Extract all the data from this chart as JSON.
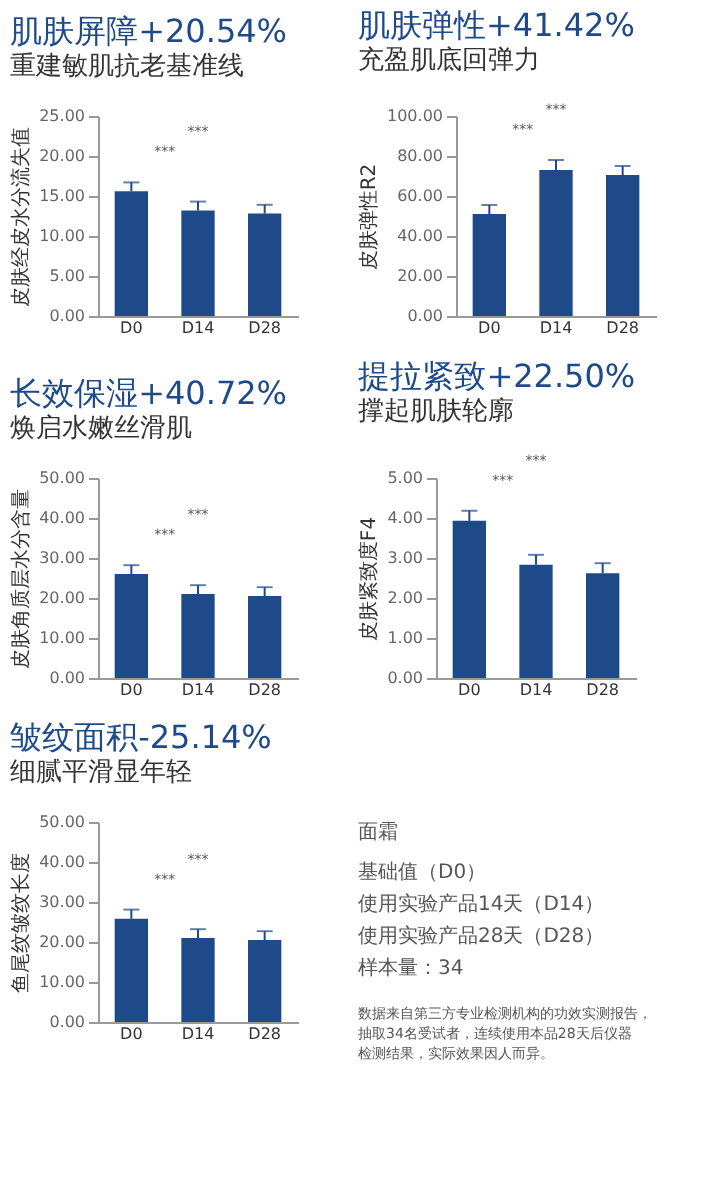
{
  "chart_data": [
    {
      "type": "bar",
      "title": "肌肤屏障+20.54%",
      "subtitle": "重建敏肌抗老基准线",
      "ylabel": "皮肤经皮水分流失值",
      "categories": [
        "D0",
        "D14",
        "D28"
      ],
      "values": [
        15.6,
        13.2,
        12.8
      ],
      "errors": [
        [
          15.6,
          16.7
        ],
        [
          13.2,
          14.3
        ],
        [
          12.8,
          13.9
        ]
      ],
      "color": "#1f4a8a",
      "ylim": [
        0,
        25
      ],
      "yticks": [
        {
          "value": 0,
          "label": "0.00"
        },
        {
          "value": 5,
          "label": "5.00"
        },
        {
          "value": 10,
          "label": "10.00"
        },
        {
          "value": 15,
          "label": "15.00"
        },
        {
          "value": 20,
          "label": "20.00"
        },
        {
          "value": 25,
          "label": "25.00"
        }
      ],
      "annotations": [
        "***",
        "***"
      ]
    },
    {
      "type": "bar",
      "title": "肌肤弹性+41.42%",
      "subtitle": "充盈肌底回弹力",
      "ylabel": "皮肤弹性R2",
      "categories": [
        "D0",
        "D14",
        "D28"
      ],
      "values": [
        51,
        73,
        70.5
      ],
      "errors": [
        [
          51,
          55.5
        ],
        [
          73,
          78
        ],
        [
          70.5,
          75
        ]
      ],
      "color": "#1f4a8a",
      "ylim": [
        0,
        100
      ],
      "yticks": [
        {
          "value": 0,
          "label": "0.00"
        },
        {
          "value": 20,
          "label": "20.00"
        },
        {
          "value": 40,
          "label": "40.00"
        },
        {
          "value": 60,
          "label": "60.00"
        },
        {
          "value": 80,
          "label": "80.00"
        },
        {
          "value": 100,
          "label": "100.00"
        }
      ],
      "annotations": [
        "***",
        "***"
      ]
    },
    {
      "type": "bar",
      "title": "长效保湿+40.72%",
      "subtitle": "焕启水嫩丝滑肌",
      "ylabel": "皮肤角质层水分含量",
      "categories": [
        "D0",
        "D14",
        "D28"
      ],
      "values": [
        26,
        21,
        20.5
      ],
      "errors": [
        [
          26,
          28.2
        ],
        [
          21,
          23.2
        ],
        [
          20.5,
          22.7
        ]
      ],
      "color": "#1f4a8a",
      "ylim": [
        0,
        50
      ],
      "yticks": [
        {
          "value": 0,
          "label": "0.00"
        },
        {
          "value": 10,
          "label": "10.00"
        },
        {
          "value": 20,
          "label": "20.00"
        },
        {
          "value": 30,
          "label": "30.00"
        },
        {
          "value": 40,
          "label": "40.00"
        },
        {
          "value": 50,
          "label": "50.00"
        }
      ],
      "annotations": [
        "***",
        "***"
      ]
    },
    {
      "type": "bar",
      "title": "提拉紧致+22.50%",
      "subtitle": "撑起肌肤轮廓",
      "ylabel": "皮肤紧致度F4",
      "categories": [
        "D0",
        "D14",
        "D28"
      ],
      "values": [
        3.93,
        2.83,
        2.62
      ],
      "errors": [
        [
          3.93,
          4.18
        ],
        [
          2.83,
          3.08
        ],
        [
          2.62,
          2.87
        ]
      ],
      "color": "#1f4a8a",
      "ylim": [
        0,
        5
      ],
      "yticks": [
        {
          "value": 0,
          "label": "0.00"
        },
        {
          "value": 1,
          "label": "1.00"
        },
        {
          "value": 2,
          "label": "2.00"
        },
        {
          "value": 3,
          "label": "3.00"
        },
        {
          "value": 4,
          "label": "4.00"
        },
        {
          "value": 5,
          "label": "5.00"
        }
      ],
      "annotations": [
        "***",
        "***"
      ]
    },
    {
      "type": "bar",
      "title": "皱纹面积-25.14%",
      "subtitle": "细腻平滑显年轻",
      "ylabel": "鱼尾纹皱纹长度",
      "categories": [
        "D0",
        "D14",
        "D28"
      ],
      "values": [
        25.8,
        21,
        20.5
      ],
      "errors": [
        [
          25.8,
          28.1
        ],
        [
          21,
          23.2
        ],
        [
          20.5,
          22.7
        ]
      ],
      "color": "#1f4a8a",
      "ylim": [
        0,
        50
      ],
      "yticks": [
        {
          "value": 0,
          "label": "0.00"
        },
        {
          "value": 10,
          "label": "10.00"
        },
        {
          "value": 20,
          "label": "20.00"
        },
        {
          "value": 30,
          "label": "30.00"
        },
        {
          "value": 40,
          "label": "40.00"
        },
        {
          "value": 50,
          "label": "50.00"
        }
      ],
      "annotations": [
        "***",
        "***"
      ]
    },
    {
      "type": "other",
      "annotations": [
        "面霜",
        "基础值（D0）",
        "使用实验产品14天（D14）",
        "使用实验产品28天（D28）",
        "样本量：34",
        "数据来自第三方专业检测机构的功效实测报告，抽取34名受试者，连续使用本品28天后仪器检测结果，实际效果因人而异。"
      ]
    }
  ]
}
